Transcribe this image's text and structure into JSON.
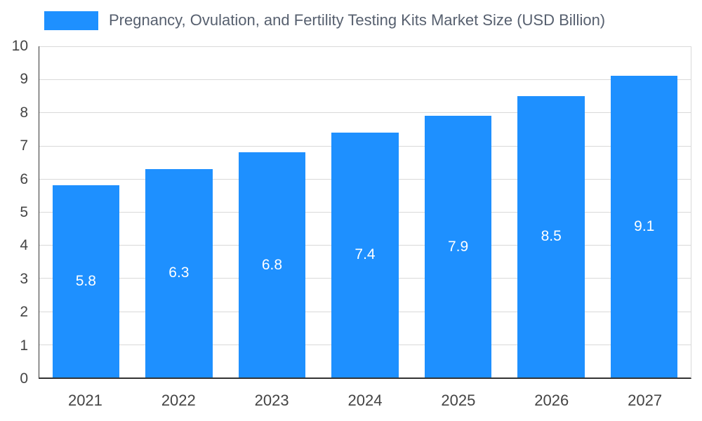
{
  "title": "Pregnancy, Ovulation, and Fertility Testing Kits Market Size (USD Billion)",
  "legend": {
    "swatch_color": "#1E90FF",
    "position": "top"
  },
  "colors": {
    "bar": "#1E90FF",
    "value_label": "#ffffff",
    "title_text": "#57606f",
    "axis_text": "#444444",
    "gridline": "#d9d9d9",
    "axis_line": "#333333"
  },
  "chart_data": {
    "type": "bar",
    "title": "Pregnancy, Ovulation, and Fertility Testing Kits Market Size (USD Billion)",
    "categories": [
      "2021",
      "2022",
      "2023",
      "2024",
      "2025",
      "2026",
      "2027"
    ],
    "values": [
      5.8,
      6.3,
      6.8,
      7.4,
      7.9,
      8.5,
      9.1
    ],
    "value_labels": [
      "5.8",
      "6.3",
      "6.8",
      "7.4",
      "7.9",
      "8.5",
      "9.1"
    ],
    "xlabel": "",
    "ylabel": "",
    "ylim": [
      0,
      10
    ],
    "ytick_step": 1,
    "ytick_labels": [
      "0",
      "1",
      "2",
      "3",
      "4",
      "5",
      "6",
      "7",
      "8",
      "9",
      "10"
    ],
    "grid": true,
    "legend_position": "top"
  }
}
